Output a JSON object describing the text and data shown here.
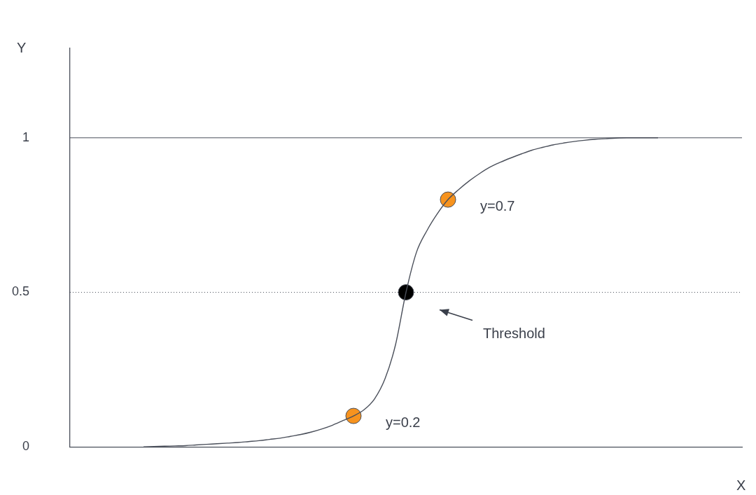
{
  "chart_data": {
    "type": "line",
    "xlabel": "X",
    "ylabel": "Y",
    "categories": [
      null,
      null,
      null,
      null,
      null,
      null,
      null,
      null,
      null,
      null,
      null,
      null,
      null,
      null,
      null,
      null,
      null,
      null,
      null,
      null,
      null,
      null,
      null,
      null,
      null,
      null,
      null,
      null,
      null,
      null,
      null,
      null,
      null,
      null,
      null,
      null,
      null,
      null,
      null,
      null,
      null,
      null,
      null,
      null,
      null,
      null,
      null,
      null,
      null,
      null,
      null,
      null,
      null,
      null,
      null,
      null,
      null,
      null,
      null,
      null,
      null,
      null,
      null,
      null,
      null
    ],
    "series": [
      {
        "color": "#4a4f5a",
        "values": [
          null,
          null,
          null,
          null,
          null,
          null,
          null,
          0,
          0.001,
          0.002,
          0.003,
          0.004,
          0.006,
          0.008,
          0.01,
          0.012,
          0.014,
          0.017,
          0.02,
          0.024,
          0.028,
          0.034,
          0.04,
          0.048,
          0.058,
          0.07,
          0.085,
          0.1,
          0.12,
          0.155,
          0.22,
          0.33,
          0.5,
          0.63,
          0.7,
          0.755,
          0.8,
          0.832,
          0.86,
          0.884,
          0.905,
          0.921,
          0.935,
          0.948,
          0.96,
          0.969,
          0.977,
          0.983,
          0.988,
          0.992,
          0.995,
          0.997,
          0.999,
          1,
          1,
          1,
          1,
          null,
          null,
          null,
          null,
          null,
          null,
          null,
          null
        ]
      },
      {
        "type": "scatter",
        "marker": "circle",
        "color": "#f7931e",
        "values": [
          null,
          null,
          null,
          null,
          null,
          null,
          null,
          null,
          null,
          null,
          null,
          null,
          null,
          null,
          null,
          null,
          null,
          null,
          null,
          null,
          null,
          null,
          null,
          null,
          null,
          null,
          null,
          0.1,
          null,
          null,
          null,
          null,
          null,
          null,
          null,
          null,
          0.8,
          null,
          null,
          null,
          null,
          null,
          null,
          null,
          null,
          null,
          null,
          null,
          null,
          null,
          null,
          null,
          null,
          null,
          null,
          null,
          null,
          null,
          null,
          null,
          null,
          null,
          null,
          null,
          null
        ]
      },
      {
        "type": "scatter",
        "marker": "circle",
        "color": "#000000",
        "values": [
          null,
          null,
          null,
          null,
          null,
          null,
          null,
          null,
          null,
          null,
          null,
          null,
          null,
          null,
          null,
          null,
          null,
          null,
          null,
          null,
          null,
          null,
          null,
          null,
          null,
          null,
          null,
          null,
          null,
          null,
          null,
          null,
          0.5,
          null,
          null,
          null,
          null,
          null,
          null,
          null,
          null,
          null,
          null,
          null,
          null,
          null,
          null,
          null,
          null,
          null,
          null,
          null,
          null,
          null,
          null,
          null,
          null,
          null,
          null,
          null,
          null,
          null,
          null,
          null,
          null
        ]
      }
    ],
    "ylim": [
      0,
      1.29
    ],
    "yticks": [
      0,
      0.5,
      1
    ],
    "ref_lines": [
      {
        "axis": "y",
        "value": 1,
        "line_style": "solid",
        "color": "#4a4f5a"
      },
      {
        "axis": "y",
        "value": 0.5,
        "line_style": "dotted",
        "color": "#4a4f5a"
      }
    ],
    "annotations": [
      "y=0.2",
      "Threshold",
      "y=0.7"
    ],
    "grid": false,
    "legend": false,
    "tick_labels": "y"
  }
}
